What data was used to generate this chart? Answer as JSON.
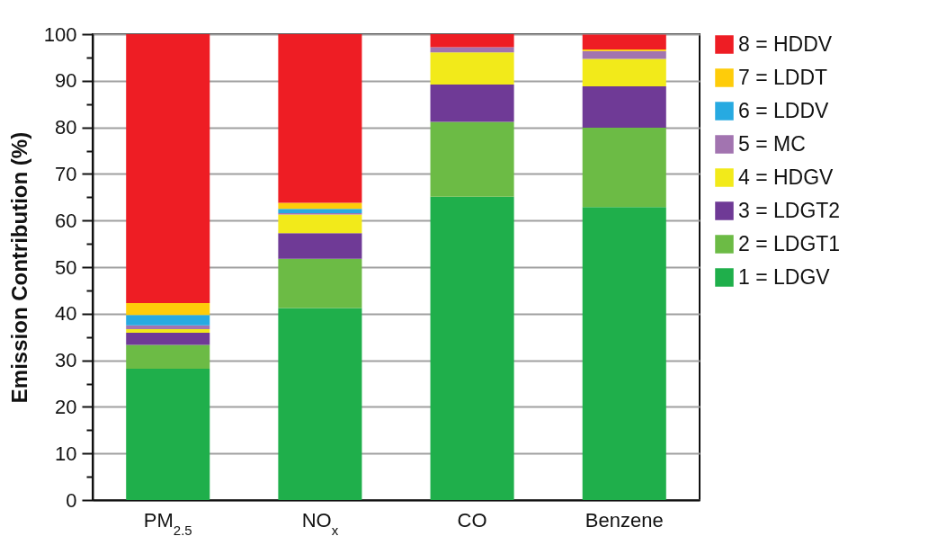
{
  "chart_data": {
    "type": "bar",
    "stacked": true,
    "ylabel": "Emission Contribution (%)",
    "categories": [
      "PM$_{2.5}$",
      "NO$_{x}$",
      "CO",
      "Benzene"
    ],
    "series": [
      {
        "name": "1 = LDGV",
        "color": "#1faf4b",
        "values": [
          28.2,
          41.2,
          65.1,
          62.9
        ]
      },
      {
        "name": "2 = LDGT1",
        "color": "#6cbb45",
        "values": [
          5.1,
          10.6,
          16.1,
          17.0
        ]
      },
      {
        "name": "3 = LDGT2",
        "color": "#6f3a96",
        "values": [
          2.6,
          5.5,
          8.0,
          8.9
        ]
      },
      {
        "name": "4 = HDGV",
        "color": "#f2ea1a",
        "values": [
          0.8,
          4.0,
          6.9,
          5.9
        ]
      },
      {
        "name": "5 = MC",
        "color": "#a274b0",
        "values": [
          0.8,
          0.3,
          1.1,
          1.7
        ]
      },
      {
        "name": "6 = LDDV",
        "color": "#27aae1",
        "values": [
          2.2,
          0.9,
          0,
          0
        ]
      },
      {
        "name": "7 = LDDT",
        "color": "#fecc0a",
        "values": [
          2.6,
          1.3,
          0,
          0.3
        ]
      },
      {
        "name": "8 = HDDV",
        "color": "#ee1d24",
        "values": [
          57.7,
          36.2,
          2.8,
          3.2
        ]
      }
    ],
    "ylim": [
      0,
      100
    ],
    "yticks": [
      0,
      {
        "value": 5,
        "label": null
      },
      10,
      {
        "value": 15,
        "label": null
      },
      20,
      {
        "value": 25,
        "label": null
      },
      30,
      {
        "value": 35,
        "label": null
      },
      40,
      {
        "value": 45,
        "label": null
      },
      50,
      {
        "value": 55,
        "label": null
      },
      60,
      {
        "value": 65,
        "label": null
      },
      70,
      {
        "value": 75,
        "label": null
      },
      80,
      {
        "value": 85,
        "label": null
      },
      90,
      {
        "value": 95,
        "label": null
      },
      100
    ],
    "grid": "y",
    "legend": "right"
  }
}
